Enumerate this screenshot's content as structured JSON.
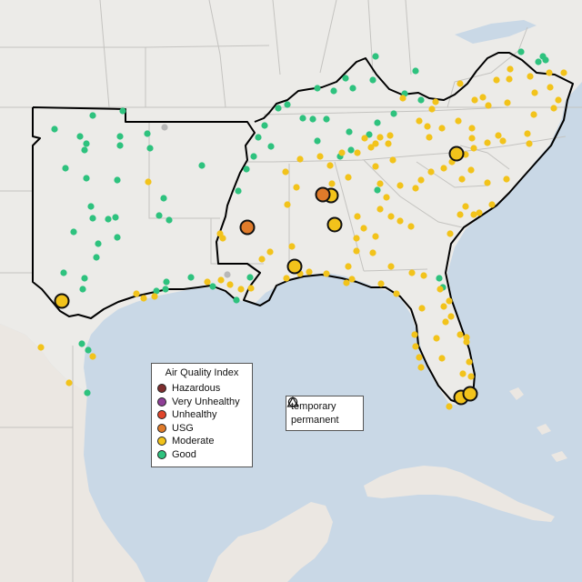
{
  "legend": {
    "title": "Air Quality Index",
    "categories": [
      {
        "label": "Hazardous",
        "color": "#7e2e2e"
      },
      {
        "label": "Very Unhealthy",
        "color": "#8f3f97"
      },
      {
        "label": "Unhealthy",
        "color": "#e0452b"
      },
      {
        "label": "USG",
        "color": "#e07b2a"
      },
      {
        "label": "Moderate",
        "color": "#f2c31b"
      },
      {
        "label": "Good",
        "color": "#2ec27e"
      }
    ]
  },
  "type_legend": {
    "items": [
      {
        "label": "temporary",
        "icon": "circle-icon"
      },
      {
        "label": "permanent",
        "icon": "triangle-icon"
      }
    ]
  },
  "colors": {
    "ocean": "#c9d8e6",
    "land": "#ecebe8",
    "good": "#2ec27e",
    "moderate": "#f2c31b",
    "usg": "#e07b2a",
    "nodata": "#b8b8b8"
  },
  "sites": {
    "good": [
      [
        413,
        62
      ],
      [
        457,
        78
      ],
      [
        349,
        97
      ],
      [
        367,
        100
      ],
      [
        380,
        86
      ],
      [
        388,
        97
      ],
      [
        410,
        88
      ],
      [
        445,
        103
      ],
      [
        463,
        110
      ],
      [
        306,
        119
      ],
      [
        316,
        115
      ],
      [
        333,
        130
      ],
      [
        344,
        131
      ],
      [
        359,
        131
      ],
      [
        384,
        145
      ],
      [
        406,
        148
      ],
      [
        415,
        135
      ],
      [
        433,
        125
      ],
      [
        291,
        138
      ],
      [
        284,
        151
      ],
      [
        298,
        161
      ],
      [
        349,
        155
      ],
      [
        386,
        165
      ],
      [
        374,
        172
      ],
      [
        102,
        127
      ],
      [
        135,
        122
      ],
      [
        60,
        142
      ],
      [
        88,
        150
      ],
      [
        95,
        158
      ],
      [
        93,
        165
      ],
      [
        132,
        150
      ],
      [
        132,
        160
      ],
      [
        165,
        163
      ],
      [
        162,
        147
      ],
      [
        72,
        185
      ],
      [
        95,
        196
      ],
      [
        129,
        198
      ],
      [
        222,
        182
      ],
      [
        180,
        218
      ],
      [
        100,
        227
      ],
      [
        102,
        240
      ],
      [
        119,
        241
      ],
      [
        127,
        239
      ],
      [
        186,
        242
      ],
      [
        175,
        237
      ],
      [
        81,
        255
      ],
      [
        108,
        268
      ],
      [
        129,
        261
      ],
      [
        106,
        283
      ],
      [
        70,
        300
      ],
      [
        93,
        306
      ],
      [
        91,
        318
      ],
      [
        183,
        310
      ],
      [
        182,
        318
      ],
      [
        172,
        320
      ],
      [
        210,
        305
      ],
      [
        234,
        315
      ],
      [
        275,
        305
      ],
      [
        260,
        330
      ],
      [
        271,
        186
      ],
      [
        262,
        210
      ],
      [
        279,
        172
      ],
      [
        415,
        209
      ],
      [
        483,
        306
      ],
      [
        487,
        316
      ],
      [
        90,
        378
      ],
      [
        97,
        385
      ],
      [
        96,
        432
      ],
      [
        592,
        68
      ],
      [
        597,
        62
      ],
      [
        573,
        57
      ],
      [
        600,
        66
      ]
    ],
    "moderate": [
      [
        443,
        108
      ],
      [
        461,
        133
      ],
      [
        470,
        139
      ],
      [
        472,
        151
      ],
      [
        486,
        141
      ],
      [
        504,
        133
      ],
      [
        519,
        141
      ],
      [
        519,
        152
      ],
      [
        521,
        163
      ],
      [
        512,
        170
      ],
      [
        497,
        178
      ],
      [
        488,
        185
      ],
      [
        518,
        187
      ],
      [
        536,
        157
      ],
      [
        548,
        149
      ],
      [
        553,
        155
      ],
      [
        580,
        147
      ],
      [
        582,
        158
      ],
      [
        587,
        126
      ],
      [
        609,
        119
      ],
      [
        614,
        110
      ],
      [
        605,
        96
      ],
      [
        588,
        102
      ],
      [
        604,
        80
      ],
      [
        620,
        80
      ],
      [
        583,
        84
      ],
      [
        561,
        76
      ],
      [
        560,
        87
      ],
      [
        531,
        107
      ],
      [
        537,
        116
      ],
      [
        558,
        113
      ],
      [
        546,
        88
      ],
      [
        522,
        110
      ],
      [
        506,
        92
      ],
      [
        479,
        112
      ],
      [
        475,
        120
      ],
      [
        418,
        151
      ],
      [
        413,
        158
      ],
      [
        427,
        158
      ],
      [
        429,
        149
      ],
      [
        408,
        162
      ],
      [
        401,
        152
      ],
      [
        393,
        168
      ],
      [
        376,
        168
      ],
      [
        363,
        182
      ],
      [
        326,
        206
      ],
      [
        314,
        189
      ],
      [
        330,
        175
      ],
      [
        352,
        172
      ],
      [
        365,
        202
      ],
      [
        383,
        195
      ],
      [
        413,
        183
      ],
      [
        432,
        176
      ],
      [
        418,
        202
      ],
      [
        440,
        204
      ],
      [
        457,
        207
      ],
      [
        425,
        217
      ],
      [
        430,
        238
      ],
      [
        440,
        243
      ],
      [
        452,
        249
      ],
      [
        418,
        230
      ],
      [
        393,
        238
      ],
      [
        400,
        251
      ],
      [
        413,
        260
      ],
      [
        392,
        262
      ],
      [
        392,
        276
      ],
      [
        410,
        278
      ],
      [
        430,
        293
      ],
      [
        463,
        198
      ],
      [
        474,
        189
      ],
      [
        508,
        197
      ],
      [
        536,
        201
      ],
      [
        557,
        197
      ],
      [
        541,
        225
      ],
      [
        512,
        227
      ],
      [
        506,
        236
      ],
      [
        495,
        257
      ],
      [
        521,
        236
      ],
      [
        527,
        234
      ],
      [
        316,
        225
      ],
      [
        297,
        277
      ],
      [
        321,
        271
      ],
      [
        288,
        285
      ],
      [
        315,
        306
      ],
      [
        330,
        301
      ],
      [
        340,
        299
      ],
      [
        359,
        301
      ],
      [
        383,
        293
      ],
      [
        381,
        311
      ],
      [
        419,
        312
      ],
      [
        387,
        307
      ],
      [
        436,
        323
      ],
      [
        453,
        300
      ],
      [
        466,
        303
      ],
      [
        484,
        318
      ],
      [
        464,
        339
      ],
      [
        488,
        337
      ],
      [
        494,
        331
      ],
      [
        490,
        354
      ],
      [
        496,
        348
      ],
      [
        513,
        371
      ],
      [
        513,
        376
      ],
      [
        480,
        372
      ],
      [
        456,
        368
      ],
      [
        457,
        381
      ],
      [
        461,
        393
      ],
      [
        463,
        404
      ],
      [
        486,
        394
      ],
      [
        506,
        368
      ],
      [
        516,
        398
      ],
      [
        509,
        411
      ],
      [
        518,
        414
      ],
      [
        504,
        436
      ],
      [
        494,
        447
      ],
      [
        276,
        317
      ],
      [
        265,
        318
      ],
      [
        253,
        313
      ],
      [
        243,
        308
      ],
      [
        228,
        310
      ],
      [
        170,
        326
      ],
      [
        158,
        328
      ],
      [
        150,
        323
      ],
      [
        242,
        257
      ],
      [
        245,
        262
      ],
      [
        163,
        200
      ],
      [
        45,
        382
      ],
      [
        76,
        421
      ],
      [
        102,
        392
      ]
    ],
    "nodata": [
      [
        181,
        140
      ],
      [
        250,
        302
      ]
    ],
    "major_moderate": [
      [
        502,
        169
      ],
      [
        364,
        215
      ],
      [
        368,
        247
      ],
      [
        324,
        293
      ],
      [
        68,
        331
      ],
      [
        507,
        437
      ],
      [
        517,
        433
      ]
    ],
    "major_usg": [
      [
        272,
        250
      ],
      [
        355,
        214
      ]
    ]
  }
}
